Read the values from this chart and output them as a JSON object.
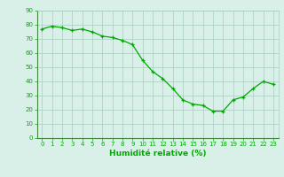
{
  "x": [
    0,
    1,
    2,
    3,
    4,
    5,
    6,
    7,
    8,
    9,
    10,
    11,
    12,
    13,
    14,
    15,
    16,
    17,
    18,
    19,
    20,
    21,
    22,
    23
  ],
  "y": [
    77,
    79,
    78,
    76,
    77,
    75,
    72,
    71,
    69,
    66,
    55,
    47,
    42,
    35,
    27,
    24,
    23,
    19,
    19,
    27,
    29,
    35,
    40,
    38
  ],
  "line_color": "#00aa00",
  "marker_color": "#00aa00",
  "bg_color": "#d8f0e8",
  "grid_color": "#aaccc0",
  "tick_color": "#00aa00",
  "xlabel": "Humidité relative (%)",
  "xlabel_color": "#00aa00",
  "xlim": [
    -0.5,
    23.5
  ],
  "ylim": [
    0,
    90
  ],
  "yticks": [
    0,
    10,
    20,
    30,
    40,
    50,
    60,
    70,
    80,
    90
  ],
  "xticks": [
    0,
    1,
    2,
    3,
    4,
    5,
    6,
    7,
    8,
    9,
    10,
    11,
    12,
    13,
    14,
    15,
    16,
    17,
    18,
    19,
    20,
    21,
    22,
    23
  ]
}
